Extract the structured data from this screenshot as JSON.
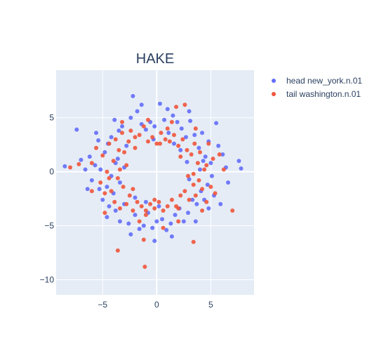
{
  "chart_data": {
    "type": "scatter",
    "title": "HAKE",
    "xlabel": "",
    "ylabel": "",
    "xlim": [
      -9.3,
      9.0
    ],
    "ylim": [
      -11.4,
      9.4
    ],
    "xticks": [
      -5,
      0,
      5
    ],
    "yticks": [
      5,
      0,
      -5,
      -10
    ],
    "xtick_labels": [
      "−5",
      "0",
      "5"
    ],
    "ytick_labels": [
      "5",
      "0",
      "−5",
      "−10"
    ],
    "grid": true,
    "legend_position": "top-right",
    "series": [
      {
        "name": "head new_york.n.01",
        "color": "#636efa",
        "points": [
          [
            -8.5,
            0.5
          ],
          [
            -7.4,
            3.9
          ],
          [
            -7.0,
            1.1
          ],
          [
            -6.6,
            0.2
          ],
          [
            -6.2,
            1.4
          ],
          [
            -6.0,
            -0.8
          ],
          [
            -5.7,
            0.6
          ],
          [
            -5.4,
            2.9
          ],
          [
            -5.3,
            -1.6
          ],
          [
            -5.2,
            0.2
          ],
          [
            -5.0,
            -2.6
          ],
          [
            -4.8,
            1.8
          ],
          [
            -4.6,
            -1.4
          ],
          [
            -4.5,
            2.6
          ],
          [
            -4.4,
            -3.2
          ],
          [
            -4.2,
            3.2
          ],
          [
            -4.0,
            -2.0
          ],
          [
            -3.9,
            4.8
          ],
          [
            -3.8,
            -3.6
          ],
          [
            -3.6,
            1.2
          ],
          [
            -3.5,
            3.8
          ],
          [
            -3.4,
            -4.6
          ],
          [
            -3.2,
            4.2
          ],
          [
            -3.0,
            -3.0
          ],
          [
            -2.8,
            2.4
          ],
          [
            -2.6,
            -4.8
          ],
          [
            -2.4,
            5.0
          ],
          [
            -2.2,
            7.0
          ],
          [
            -2.0,
            -4.0
          ],
          [
            -1.8,
            5.6
          ],
          [
            -1.6,
            -5.3
          ],
          [
            -1.4,
            4.4
          ],
          [
            -1.2,
            -5.0
          ],
          [
            -1.0,
            3.9
          ],
          [
            -0.8,
            -3.8
          ],
          [
            -0.6,
            4.6
          ],
          [
            -0.4,
            -5.2
          ],
          [
            -0.2,
            4.2
          ],
          [
            0.0,
            -4.6
          ],
          [
            0.3,
            6.3
          ],
          [
            0.5,
            -4.4
          ],
          [
            0.7,
            4.8
          ],
          [
            0.9,
            -5.4
          ],
          [
            1.1,
            3.6
          ],
          [
            1.3,
            -4.8
          ],
          [
            1.5,
            5.2
          ],
          [
            1.7,
            -4.0
          ],
          [
            1.9,
            4.6
          ],
          [
            2.1,
            -3.4
          ],
          [
            2.3,
            4.0
          ],
          [
            2.5,
            -4.6
          ],
          [
            2.7,
            3.2
          ],
          [
            2.9,
            -3.8
          ],
          [
            3.1,
            4.7
          ],
          [
            3.3,
            -2.6
          ],
          [
            3.5,
            3.4
          ],
          [
            3.7,
            -3.0
          ],
          [
            3.9,
            2.2
          ],
          [
            4.1,
            -1.8
          ],
          [
            4.2,
            3.6
          ],
          [
            4.4,
            -2.6
          ],
          [
            4.5,
            1.4
          ],
          [
            4.7,
            -1.2
          ],
          [
            4.8,
            2.8
          ],
          [
            5.0,
            0.8
          ],
          [
            5.1,
            -0.4
          ],
          [
            5.3,
            -2.2
          ],
          [
            5.5,
            4.5
          ],
          [
            5.7,
            2.4
          ],
          [
            5.9,
            -3.0
          ],
          [
            6.1,
            1.6
          ],
          [
            6.4,
            0.4
          ],
          [
            6.6,
            -1.0
          ],
          [
            7.6,
            1.0
          ],
          [
            7.8,
            0.3
          ],
          [
            -3.0,
            0.4
          ],
          [
            -3.4,
            -1.0
          ],
          [
            2.8,
            0.9
          ],
          [
            3.0,
            -0.7
          ],
          [
            -0.3,
            3.0
          ],
          [
            0.2,
            -3.2
          ],
          [
            -2.0,
            -2.4
          ],
          [
            2.2,
            2.0
          ],
          [
            -6.4,
            -1.6
          ],
          [
            -4.6,
            -4.2
          ],
          [
            -0.2,
            -6.4
          ],
          [
            1.4,
            -6.0
          ],
          [
            -1.4,
            6.2
          ],
          [
            3.6,
            -4.6
          ],
          [
            4.8,
            -3.4
          ],
          [
            -5.6,
            3.6
          ],
          [
            -2.4,
            -5.8
          ],
          [
            1.0,
            5.8
          ],
          [
            3.0,
            5.6
          ],
          [
            -3.8,
            0.8
          ],
          [
            4.0,
            0.2
          ],
          [
            -4.2,
            -0.4
          ],
          [
            4.3,
            1.0
          ],
          [
            -1.0,
            -2.8
          ],
          [
            1.6,
            2.6
          ]
        ]
      },
      {
        "name": "tail washington.n.01",
        "color": "#ef553b",
        "points": [
          [
            -8.0,
            0.4
          ],
          [
            -7.2,
            0.7
          ],
          [
            -6.0,
            0.8
          ],
          [
            -5.6,
            2.2
          ],
          [
            -5.2,
            -1.0
          ],
          [
            -5.0,
            1.5
          ],
          [
            -4.8,
            -2.0
          ],
          [
            -4.6,
            0.0
          ],
          [
            -4.4,
            2.6
          ],
          [
            -4.2,
            -1.8
          ],
          [
            -4.0,
            1.0
          ],
          [
            -3.9,
            -2.8
          ],
          [
            -3.8,
            3.0
          ],
          [
            -3.6,
            -0.6
          ],
          [
            -3.5,
            2.0
          ],
          [
            -3.4,
            -3.4
          ],
          [
            -3.2,
            3.6
          ],
          [
            -3.1,
            -1.4
          ],
          [
            -3.0,
            1.8
          ],
          [
            -2.8,
            -3.0
          ],
          [
            -2.6,
            2.8
          ],
          [
            -2.5,
            -2.2
          ],
          [
            -2.4,
            3.8
          ],
          [
            -2.2,
            -3.6
          ],
          [
            -2.0,
            2.2
          ],
          [
            -1.8,
            -2.8
          ],
          [
            -1.6,
            3.4
          ],
          [
            -1.4,
            -3.2
          ],
          [
            -1.2,
            4.2
          ],
          [
            -1.0,
            -3.6
          ],
          [
            -0.8,
            2.8
          ],
          [
            -0.6,
            -3.0
          ],
          [
            -0.4,
            3.2
          ],
          [
            -0.2,
            -3.4
          ],
          [
            0.0,
            2.6
          ],
          [
            0.2,
            -2.8
          ],
          [
            0.4,
            3.6
          ],
          [
            0.6,
            -3.6
          ],
          [
            0.8,
            3.0
          ],
          [
            1.0,
            -3.2
          ],
          [
            1.2,
            2.8
          ],
          [
            1.4,
            -2.6
          ],
          [
            1.6,
            3.4
          ],
          [
            1.8,
            -3.2
          ],
          [
            2.0,
            2.4
          ],
          [
            2.2,
            -2.2
          ],
          [
            2.4,
            3.0
          ],
          [
            2.6,
            -1.8
          ],
          [
            2.8,
            2.0
          ],
          [
            3.0,
            -2.6
          ],
          [
            3.2,
            1.6
          ],
          [
            3.4,
            -1.2
          ],
          [
            3.5,
            2.6
          ],
          [
            3.6,
            -2.2
          ],
          [
            3.8,
            0.8
          ],
          [
            3.9,
            -0.8
          ],
          [
            4.0,
            1.8
          ],
          [
            4.2,
            -1.6
          ],
          [
            4.4,
            0.2
          ],
          [
            4.6,
            -2.8
          ],
          [
            4.8,
            2.6
          ],
          [
            5.0,
            -1.4
          ],
          [
            5.2,
            1.2
          ],
          [
            5.4,
            -2.0
          ],
          [
            5.8,
            1.6
          ],
          [
            6.2,
            0.2
          ],
          [
            7.0,
            -3.6
          ],
          [
            -3.6,
            -7.3
          ],
          [
            -1.1,
            -8.8
          ],
          [
            -1.2,
            -6.3
          ],
          [
            1.8,
            6.0
          ],
          [
            2.6,
            6.2
          ],
          [
            3.4,
            -6.5
          ],
          [
            -6.0,
            -1.8
          ],
          [
            -4.8,
            -3.8
          ],
          [
            -1.6,
            -4.6
          ],
          [
            0.6,
            -5.2
          ],
          [
            2.0,
            -4.6
          ],
          [
            4.2,
            -3.6
          ],
          [
            -3.2,
            4.6
          ],
          [
            -0.8,
            4.8
          ],
          [
            1.4,
            4.6
          ],
          [
            3.6,
            4.0
          ],
          [
            -2.8,
            0.6
          ],
          [
            2.9,
            -0.4
          ],
          [
            -0.2,
            -2.6
          ],
          [
            0.3,
            2.6
          ],
          [
            -2.2,
            -1.6
          ],
          [
            2.2,
            1.4
          ],
          [
            -4.4,
            -0.6
          ],
          [
            4.6,
            0.6
          ],
          [
            -3.4,
            0.2
          ],
          [
            3.4,
            -0.2
          ],
          [
            -1.0,
            -4.0
          ],
          [
            1.0,
            4.0
          ],
          [
            -2.0,
            3.2
          ],
          [
            2.0,
            -3.4
          ]
        ]
      }
    ]
  }
}
